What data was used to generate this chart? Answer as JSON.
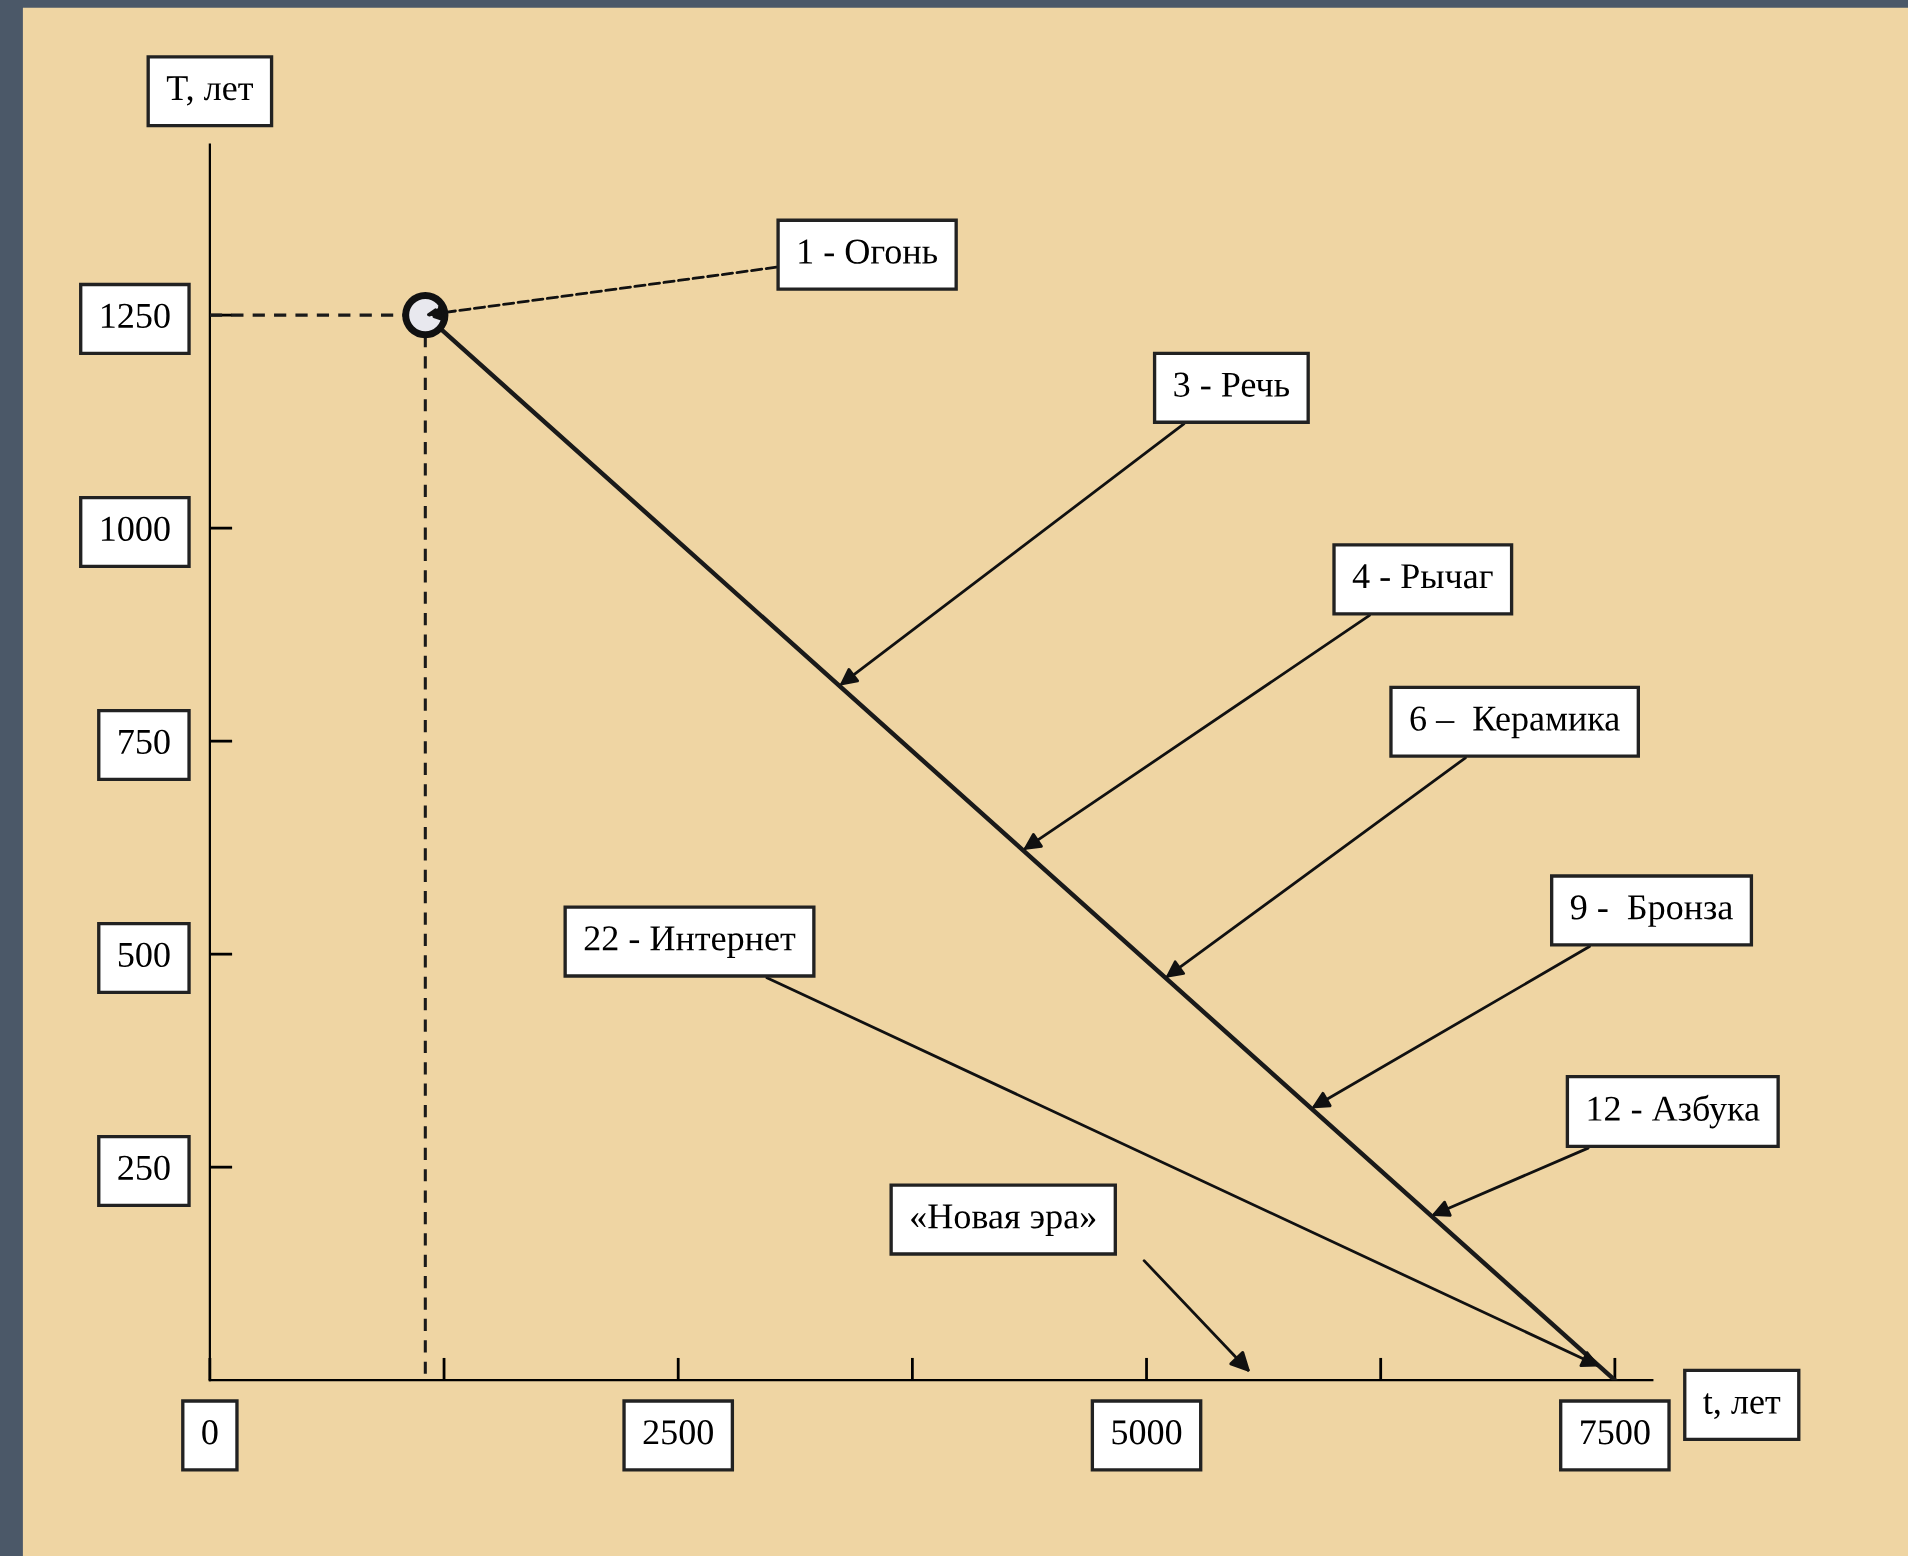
{
  "chart_data": {
    "type": "line",
    "xlabel": "t, лет",
    "ylabel": "T, лет",
    "xlim": [
      0,
      7700
    ],
    "ylim": [
      0,
      1450
    ],
    "xticks": [
      0,
      {
        "value": 1250,
        "label": null
      },
      2500,
      {
        "value": 3750,
        "label": null
      },
      5000,
      {
        "value": 6250,
        "label": null
      },
      7500
    ],
    "yticks": [
      250,
      500,
      750,
      1000,
      1250
    ],
    "series": [
      {
        "color": "#1a1a1a",
        "x": [
          1150,
          7500
        ],
        "values": [
          1250,
          0
        ],
        "marker": "none",
        "line_style": "solid"
      },
      {
        "color": "#1a1a1a",
        "x": [
          0,
          1150,
          1150
        ],
        "values": [
          1250,
          1250,
          0
        ],
        "marker": "none",
        "line_style": "dashed"
      },
      {
        "type": "scatter",
        "color": "#e8e8ee",
        "x": [
          1150
        ],
        "values": [
          1250
        ],
        "marker": "circle"
      }
    ],
    "annotations": [
      {
        "text": "1 - Огонь",
        "x": 1150,
        "y": 1250
      },
      {
        "text": "3 - Речь",
        "x": 3360,
        "y": 815
      },
      {
        "text": "4 - Рычаг",
        "x": 4340,
        "y": 622
      },
      {
        "text": "6 –  Керамика",
        "x": 5100,
        "y": 472
      },
      {
        "text": "9 -  Бронза",
        "x": 5880,
        "y": 319
      },
      {
        "text": "12 - Азбука",
        "x": 6520,
        "y": 193
      },
      {
        "text": "22 - Интернет",
        "x": 7420,
        "y": 16
      },
      "«Новая эра»"
    ],
    "grid": false,
    "legend": false
  }
}
